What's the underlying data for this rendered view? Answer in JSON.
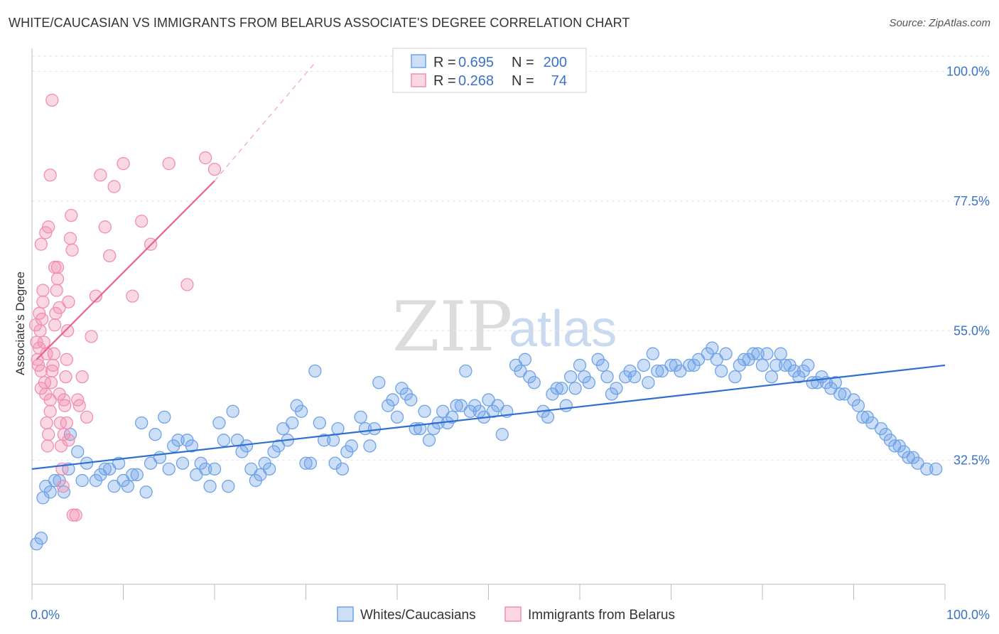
{
  "title": "WHITE/CAUCASIAN VS IMMIGRANTS FROM BELARUS ASSOCIATE'S DEGREE CORRELATION CHART",
  "source": "Source: ZipAtlas.com",
  "watermark": {
    "zip": "ZIP",
    "atlas": "atlas"
  },
  "legend_top": {
    "rows": [
      {
        "r_label": "R = ",
        "r_value": "0.695",
        "n_label": "N = ",
        "n_value": "200",
        "color": "#6fa3e8"
      },
      {
        "r_label": "R = ",
        "r_value": "0.268",
        "n_label": "N = ",
        "n_value": "74",
        "color": "#f08fb0"
      }
    ]
  },
  "chart_data": {
    "type": "scatter",
    "title": "WHITE/CAUCASIAN VS IMMIGRANTS FROM BELARUS ASSOCIATE'S DEGREE CORRELATION CHART",
    "xlabel": "",
    "ylabel": "Associate's Degree",
    "xlim": [
      0,
      100
    ],
    "ylim": [
      11,
      104
    ],
    "x_tick_labels": [
      "0.0%",
      "100.0%"
    ],
    "y_ticks": [
      32.5,
      55.0,
      77.5,
      100.0
    ],
    "y_tick_labels": [
      "32.5%",
      "55.0%",
      "77.5%",
      "100.0%"
    ],
    "grid": true,
    "legend_placement": "bottom",
    "series": [
      {
        "name": "Whites/Caucasians",
        "color": "#6fa3e8",
        "fill": "rgba(111,163,232,0.35)",
        "trend": {
          "x": [
            0,
            100
          ],
          "y": [
            31.0,
            49.0
          ]
        },
        "points": [
          [
            0.5,
            18
          ],
          [
            1,
            19
          ],
          [
            1.2,
            26
          ],
          [
            1.5,
            28
          ],
          [
            2,
            27
          ],
          [
            2.5,
            29
          ],
          [
            3,
            29
          ],
          [
            3.5,
            27
          ],
          [
            4,
            31
          ],
          [
            4.2,
            37
          ],
          [
            5,
            34
          ],
          [
            5.5,
            29
          ],
          [
            6,
            32
          ],
          [
            7,
            29
          ],
          [
            7.5,
            30
          ],
          [
            8,
            31
          ],
          [
            8.5,
            31
          ],
          [
            9,
            28
          ],
          [
            9.5,
            32
          ],
          [
            10,
            29
          ],
          [
            10.5,
            28
          ],
          [
            11,
            30
          ],
          [
            11.5,
            30
          ],
          [
            12,
            39
          ],
          [
            12.5,
            27
          ],
          [
            13,
            32
          ],
          [
            13.5,
            37
          ],
          [
            14,
            33
          ],
          [
            14.5,
            40
          ],
          [
            15,
            31
          ],
          [
            15.5,
            35
          ],
          [
            16,
            36
          ],
          [
            16.5,
            32
          ],
          [
            17,
            36
          ],
          [
            17.5,
            35
          ],
          [
            18,
            30
          ],
          [
            18.5,
            32
          ],
          [
            19,
            31
          ],
          [
            19.5,
            28
          ],
          [
            20,
            31
          ],
          [
            20.5,
            39
          ],
          [
            21,
            36
          ],
          [
            21.5,
            28
          ],
          [
            22,
            41
          ],
          [
            22.5,
            36
          ],
          [
            23,
            34
          ],
          [
            23.5,
            35
          ],
          [
            24,
            31
          ],
          [
            24.5,
            29
          ],
          [
            25,
            30
          ],
          [
            25.5,
            32
          ],
          [
            26,
            31
          ],
          [
            26.5,
            34
          ],
          [
            27,
            35
          ],
          [
            27.5,
            38
          ],
          [
            28,
            36
          ],
          [
            28.5,
            39
          ],
          [
            29,
            42
          ],
          [
            29.5,
            41
          ],
          [
            30,
            32
          ],
          [
            30.5,
            32
          ],
          [
            31,
            48
          ],
          [
            31.5,
            39
          ],
          [
            32,
            36
          ],
          [
            33,
            36
          ],
          [
            33.5,
            38
          ],
          [
            33.2,
            32
          ],
          [
            34,
            31
          ],
          [
            34.5,
            34
          ],
          [
            35,
            35
          ],
          [
            36,
            40
          ],
          [
            36.5,
            38
          ],
          [
            37,
            35
          ],
          [
            37.5,
            38
          ],
          [
            38,
            46
          ],
          [
            39,
            42
          ],
          [
            39.5,
            43
          ],
          [
            40,
            40
          ],
          [
            40.5,
            45
          ],
          [
            41,
            44
          ],
          [
            41.5,
            43
          ],
          [
            42,
            38
          ],
          [
            42.5,
            38
          ],
          [
            43,
            41
          ],
          [
            43.5,
            36
          ],
          [
            44,
            38
          ],
          [
            44.5,
            39
          ],
          [
            45,
            41
          ],
          [
            45.5,
            39
          ],
          [
            46,
            40
          ],
          [
            46.5,
            42
          ],
          [
            47,
            42
          ],
          [
            47.5,
            48
          ],
          [
            48,
            41
          ],
          [
            48.5,
            42
          ],
          [
            49,
            41
          ],
          [
            49.5,
            40
          ],
          [
            50,
            43
          ],
          [
            50.5,
            41
          ],
          [
            51,
            42
          ],
          [
            51.5,
            37
          ],
          [
            52,
            41
          ],
          [
            53,
            49
          ],
          [
            53.5,
            48
          ],
          [
            54,
            50
          ],
          [
            54.5,
            47
          ],
          [
            55,
            46
          ],
          [
            56,
            41
          ],
          [
            56.5,
            40
          ],
          [
            57,
            44
          ],
          [
            57.5,
            45
          ],
          [
            58,
            45
          ],
          [
            58.5,
            42
          ],
          [
            59,
            47
          ],
          [
            59.5,
            45
          ],
          [
            60,
            49
          ],
          [
            60.5,
            47
          ],
          [
            61,
            46
          ],
          [
            62,
            50
          ],
          [
            62.5,
            49
          ],
          [
            63,
            47
          ],
          [
            63.5,
            44
          ],
          [
            64,
            45
          ],
          [
            65,
            47
          ],
          [
            65.5,
            48
          ],
          [
            66,
            47
          ],
          [
            67,
            49
          ],
          [
            67.5,
            46
          ],
          [
            68,
            51
          ],
          [
            68.5,
            48
          ],
          [
            69,
            48
          ],
          [
            70,
            49
          ],
          [
            70.5,
            49
          ],
          [
            71,
            48
          ],
          [
            72,
            49
          ],
          [
            72.5,
            49
          ],
          [
            73,
            50
          ],
          [
            74,
            51
          ],
          [
            74.5,
            52
          ],
          [
            75,
            50
          ],
          [
            75.5,
            48
          ],
          [
            76,
            51
          ],
          [
            77,
            47
          ],
          [
            77.5,
            49
          ],
          [
            78,
            50
          ],
          [
            78.5,
            50
          ],
          [
            79,
            51
          ],
          [
            79.5,
            51
          ],
          [
            80,
            49
          ],
          [
            80.5,
            51
          ],
          [
            81,
            47
          ],
          [
            81.5,
            49
          ],
          [
            82,
            51
          ],
          [
            82.5,
            49
          ],
          [
            83,
            49
          ],
          [
            83.5,
            48
          ],
          [
            84,
            47
          ],
          [
            84.5,
            48
          ],
          [
            85,
            49
          ],
          [
            85.5,
            46
          ],
          [
            86,
            46
          ],
          [
            86.5,
            47
          ],
          [
            87,
            46
          ],
          [
            87.5,
            45
          ],
          [
            88,
            46
          ],
          [
            88.5,
            44
          ],
          [
            89,
            44
          ],
          [
            90,
            43
          ],
          [
            90.5,
            42
          ],
          [
            91,
            40
          ],
          [
            91.5,
            40
          ],
          [
            92,
            39
          ],
          [
            93,
            38
          ],
          [
            93.5,
            37
          ],
          [
            94,
            36
          ],
          [
            94.5,
            35
          ],
          [
            95,
            35
          ],
          [
            95.5,
            34
          ],
          [
            96,
            33
          ],
          [
            96.5,
            33
          ],
          [
            97,
            32
          ],
          [
            98,
            31
          ],
          [
            99,
            31
          ]
        ]
      },
      {
        "name": "Immigrants from Belarus",
        "color": "#f08fb0",
        "fill": "rgba(240,143,176,0.35)",
        "trend": {
          "x": [
            0.5,
            20
          ],
          "y": [
            50.0,
            81.0
          ],
          "dashed_to": {
            "x": 31,
            "y": 101.5
          }
        },
        "points": [
          [
            0.4,
            56
          ],
          [
            0.5,
            53
          ],
          [
            0.6,
            50
          ],
          [
            0.7,
            49
          ],
          [
            0.8,
            52
          ],
          [
            0.9,
            55
          ],
          [
            1,
            45
          ],
          [
            1,
            48
          ],
          [
            1.1,
            57
          ],
          [
            1.2,
            60
          ],
          [
            1.3,
            53
          ],
          [
            1.4,
            46
          ],
          [
            1.5,
            44
          ],
          [
            1.6,
            39
          ],
          [
            1.7,
            35
          ],
          [
            1.8,
            37
          ],
          [
            2,
            41
          ],
          [
            2,
            43
          ],
          [
            2.1,
            46
          ],
          [
            2.2,
            48
          ],
          [
            2.3,
            49
          ],
          [
            2.4,
            51
          ],
          [
            2.5,
            56
          ],
          [
            2.6,
            58
          ],
          [
            2.7,
            62
          ],
          [
            2.8,
            66
          ],
          [
            3,
            44
          ],
          [
            3.1,
            39
          ],
          [
            3.2,
            35
          ],
          [
            3.3,
            31
          ],
          [
            3.4,
            28
          ],
          [
            3.5,
            37
          ],
          [
            3.6,
            42
          ],
          [
            3.7,
            47
          ],
          [
            3.8,
            50
          ],
          [
            3.9,
            55
          ],
          [
            4,
            60
          ],
          [
            4.2,
            71
          ],
          [
            4.3,
            75
          ],
          [
            4.4,
            69
          ],
          [
            1,
            70
          ],
          [
            1.5,
            72
          ],
          [
            1.8,
            73
          ],
          [
            2,
            82
          ],
          [
            2.2,
            95
          ],
          [
            2.5,
            66
          ],
          [
            2.8,
            64
          ],
          [
            3,
            59
          ],
          [
            3.5,
            43
          ],
          [
            3.8,
            39
          ],
          [
            4,
            36
          ],
          [
            4.5,
            23
          ],
          [
            4.8,
            23
          ],
          [
            5,
            43
          ],
          [
            5.2,
            42
          ],
          [
            5.5,
            47
          ],
          [
            6,
            40
          ],
          [
            6.5,
            54
          ],
          [
            7,
            61
          ],
          [
            7.5,
            82
          ],
          [
            8,
            73
          ],
          [
            8.5,
            68
          ],
          [
            9,
            80
          ],
          [
            10,
            84
          ],
          [
            11,
            61
          ],
          [
            12,
            74
          ],
          [
            13,
            70
          ],
          [
            15,
            84
          ],
          [
            17,
            63
          ],
          [
            19,
            85
          ],
          [
            20,
            83
          ],
          [
            1.2,
            62
          ],
          [
            0.8,
            58
          ],
          [
            1.6,
            51
          ]
        ]
      }
    ]
  },
  "legend_bottom": [
    {
      "label": "Whites/Caucasians",
      "color": "#6fa3e8"
    },
    {
      "label": "Immigrants from Belarus",
      "color": "#f08fb0"
    }
  ]
}
